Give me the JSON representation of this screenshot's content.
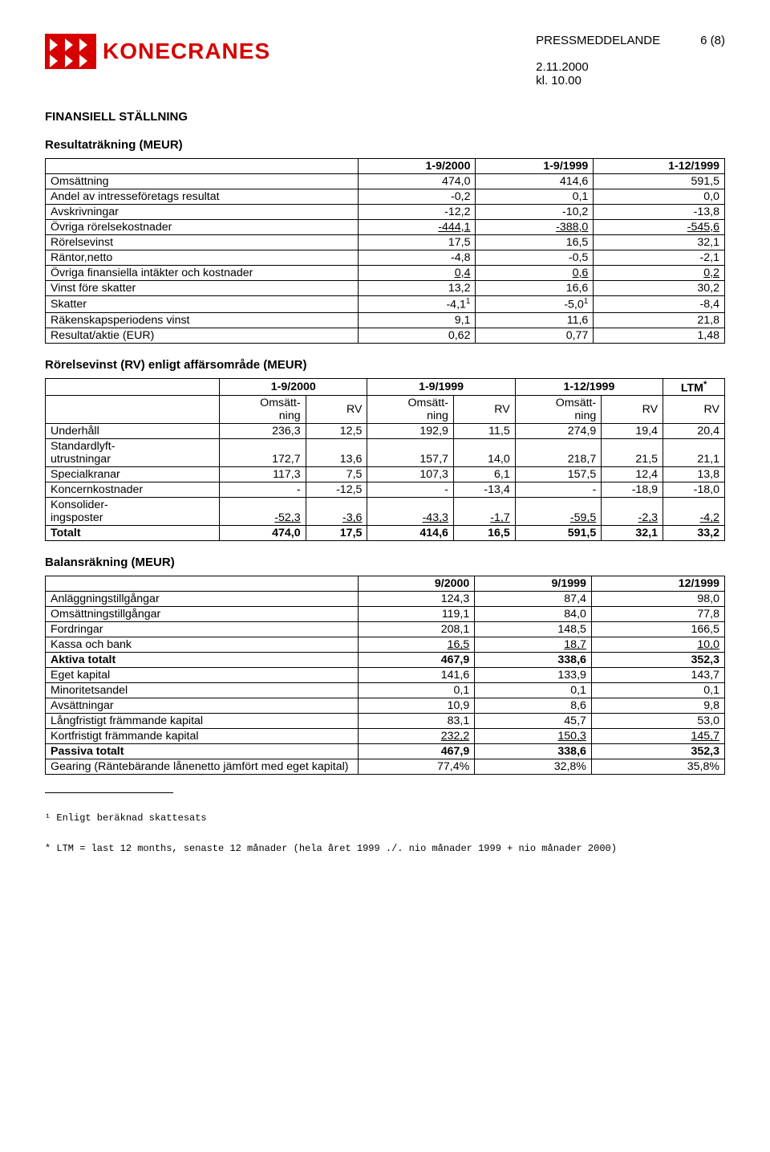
{
  "header": {
    "logo_text": "KONECRANES",
    "press": "PRESSMEDDELANDE",
    "page": "6 (8)",
    "date": "2.11.2000",
    "time": "kl. 10.00"
  },
  "main_title": "FINANSIELL STÄLLNING",
  "income": {
    "title": "Resultaträkning (MEUR)",
    "headers": [
      "1-9/2000",
      "1-9/1999",
      "1-12/1999"
    ],
    "rows": [
      {
        "label": "Omsättning",
        "v": [
          "474,0",
          "414,6",
          "591,5"
        ]
      },
      {
        "label": "Andel av intresseföretags resultat",
        "v": [
          "-0,2",
          "0,1",
          "0,0"
        ]
      },
      {
        "label": "Avskrivningar",
        "v": [
          "-12,2",
          "-10,2",
          "-13,8"
        ]
      },
      {
        "label": "Övriga rörelsekostnader",
        "v": [
          "-444,1",
          "-388,0",
          "-545,6"
        ],
        "u": true
      },
      {
        "label": "Rörelsevinst",
        "v": [
          "17,5",
          "16,5",
          "32,1"
        ]
      },
      {
        "label": "Räntor,netto",
        "v": [
          "-4,8",
          "-0,5",
          "-2,1"
        ]
      },
      {
        "label": "Övriga finansiella intäkter och kostnader",
        "v": [
          "0,4",
          "0,6",
          "0,2"
        ],
        "u": true
      },
      {
        "label": "Vinst före skatter",
        "v": [
          "13,2",
          "16,6",
          "30,2"
        ]
      },
      {
        "label": "Skatter",
        "v": [
          "-4,1",
          "-5,0",
          "-8,4"
        ],
        "sup": true
      },
      {
        "label": "Räkenskapsperiodens vinst",
        "v": [
          "9,1",
          "11,6",
          "21,8"
        ]
      },
      {
        "label": "Resultat/aktie (EUR)",
        "v": [
          "0,62",
          "0,77",
          "1,48"
        ]
      }
    ]
  },
  "segment": {
    "title": "Rörelsevinst (RV) enligt affärsområde (MEUR)",
    "group_headers": [
      "1-9/2000",
      "1-9/1999",
      "1-12/1999",
      "LTM"
    ],
    "sub_headers": [
      "Omsätt-\nning",
      "RV",
      "Omsätt-\nning",
      "RV",
      "Omsätt-\nning",
      "RV",
      "RV"
    ],
    "rows": [
      {
        "label": "Underhåll",
        "v": [
          "236,3",
          "12,5",
          "192,9",
          "11,5",
          "274,9",
          "19,4",
          "20,4"
        ]
      },
      {
        "label": "Standardlyft-\nutrustningar",
        "v": [
          "172,7",
          "13,6",
          "157,7",
          "14,0",
          "218,7",
          "21,5",
          "21,1"
        ]
      },
      {
        "label": "Specialkranar",
        "v": [
          "117,3",
          "7,5",
          "107,3",
          "6,1",
          "157,5",
          "12,4",
          "13,8"
        ]
      },
      {
        "label": "Koncernkostnader",
        "v": [
          "-",
          "-12,5",
          "-",
          "-13,4",
          "-",
          "-18,9",
          "-18,0"
        ]
      },
      {
        "label": "Konsolider-\ningsposter",
        "v": [
          "-52,3",
          "-3,6",
          "-43,3",
          "-1,7",
          "-59,5",
          "-2,3",
          "-4,2"
        ],
        "u": true
      },
      {
        "label": "Totalt",
        "v": [
          "474,0",
          "17,5",
          "414,6",
          "16,5",
          "591,5",
          "32,1",
          "33,2"
        ],
        "b": true
      }
    ]
  },
  "balance": {
    "title": "Balansräkning (MEUR)",
    "headers": [
      "9/2000",
      "9/1999",
      "12/1999"
    ],
    "rows": [
      {
        "label": "Anläggningstillgångar",
        "v": [
          "124,3",
          "87,4",
          "98,0"
        ]
      },
      {
        "label": "Omsättningstillgångar",
        "v": [
          "119,1",
          "84,0",
          "77,8"
        ]
      },
      {
        "label": "Fordringar",
        "v": [
          "208,1",
          "148,5",
          "166,5"
        ]
      },
      {
        "label": "Kassa och bank",
        "v": [
          "16,5",
          "18,7",
          "10,0"
        ],
        "u": true
      },
      {
        "label": "Aktiva totalt",
        "v": [
          "467,9",
          "338,6",
          "352,3"
        ],
        "b": true
      },
      {
        "label": "Eget kapital",
        "v": [
          "141,6",
          "133,9",
          "143,7"
        ]
      },
      {
        "label": "Minoritetsandel",
        "v": [
          "0,1",
          "0,1",
          "0,1"
        ]
      },
      {
        "label": "Avsättningar",
        "v": [
          "10,9",
          "8,6",
          "9,8"
        ]
      },
      {
        "label": "Långfristigt främmande kapital",
        "v": [
          "83,1",
          "45,7",
          "53,0"
        ]
      },
      {
        "label": "Kortfristigt främmande kapital",
        "v": [
          "232,2",
          "150,3",
          "145,7"
        ],
        "u": true
      },
      {
        "label": "Passiva totalt",
        "v": [
          "467,9",
          "338,6",
          "352,3"
        ],
        "b": true
      },
      {
        "label": "Gearing (Räntebärande lånenetto jämfört med eget kapital)",
        "v": [
          "77,4%",
          "32,8%",
          "35,8%"
        ]
      }
    ]
  },
  "footnotes": {
    "fn1": "¹ Enligt beräknad skattesats",
    "fn2": "* LTM = last 12 months, senaste 12 månader (hela året 1999 ./. nio månader 1999 + nio månader 2000)"
  }
}
